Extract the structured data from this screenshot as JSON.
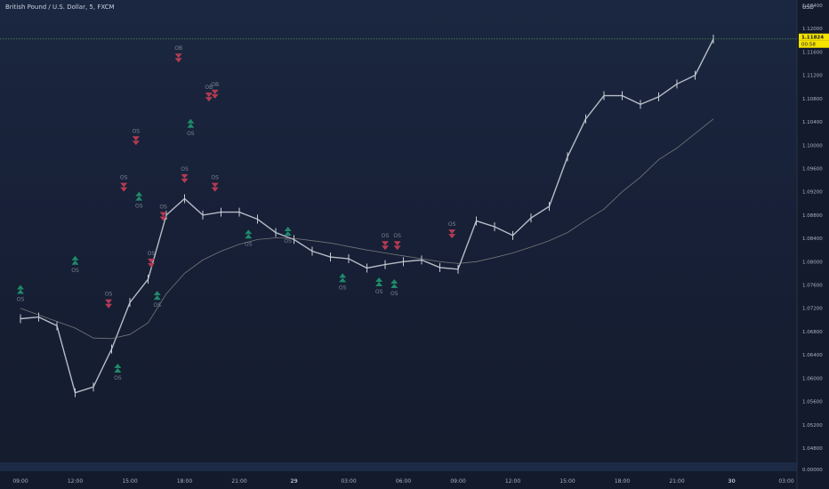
{
  "header": {
    "title": "British Pound / U.S. Dollar, 5, FXCM"
  },
  "price_axis": {
    "currency": "USD",
    "ticks": [
      "1.12400",
      "1.12000",
      "1.11600",
      "1.11200",
      "1.10800",
      "1.10400",
      "1.10000",
      "1.09600",
      "1.09200",
      "1.08800",
      "1.08400",
      "1.08000",
      "1.07600",
      "1.07200",
      "1.06800",
      "1.06400",
      "1.06000",
      "1.05600",
      "1.05200",
      "1.04800",
      "0.00000"
    ],
    "extra_ticks": [
      "1.11600"
    ],
    "current_price_label": "1.11824",
    "countdown_label": "00:58"
  },
  "time_axis": {
    "ticks": [
      "09:00",
      "12:00",
      "15:00",
      "18:00",
      "21:00",
      "29",
      "03:00",
      "06:00",
      "09:00",
      "12:00",
      "15:00",
      "18:00",
      "21:00",
      "30",
      "03:00"
    ]
  },
  "colors": {
    "background_top": "#1b2740",
    "background_bottom": "#141b2c",
    "candle": "#c8ccd6",
    "moving_average": "#8c8c8c",
    "bull_signal": "#1f8a6a",
    "bear_signal": "#b33b52",
    "signal_label": "#7b8494",
    "price_line": "#4f8f4f",
    "price_badge": "#f5e300"
  },
  "chart_data": {
    "type": "line",
    "title": "British Pound / U.S. Dollar, 5, FXCM",
    "xlabel": "",
    "ylabel": "USD",
    "x_labels": [
      "09:00",
      "12:00",
      "15:00",
      "18:00",
      "21:00",
      "29",
      "03:00",
      "06:00",
      "09:00",
      "12:00",
      "15:00",
      "18:00",
      "21:00",
      "30",
      "03:00"
    ],
    "ylim": [
      1.048,
      1.124
    ],
    "grid": false,
    "series": [
      {
        "x": [
          "09:00",
          "10:00",
          "11:00",
          "12:00",
          "13:00",
          "14:00",
          "15:00",
          "16:00",
          "17:00",
          "18:00",
          "19:00",
          "20:00",
          "21:00",
          "22:00",
          "23:00",
          "29",
          "01:00",
          "02:00",
          "03:00",
          "04:00",
          "05:00",
          "06:00",
          "07:00",
          "08:00",
          "09:00",
          "10:00",
          "11:00",
          "12:00",
          "13:00",
          "14:00",
          "15:00",
          "16:00",
          "17:00",
          "18:00",
          "19:00",
          "20:00",
          "21:00",
          "22:00",
          "23:00"
        ],
        "values": [
          1.0702,
          1.0705,
          1.069,
          1.0575,
          1.0585,
          1.065,
          1.073,
          1.077,
          1.088,
          1.0908,
          1.088,
          1.0885,
          1.0885,
          1.0873,
          1.085,
          1.0838,
          1.0818,
          1.0808,
          1.0805,
          1.0789,
          1.0795,
          1.08,
          1.0803,
          1.079,
          1.0787,
          1.087,
          1.086,
          1.0845,
          1.0875,
          1.0895,
          1.098,
          1.1045,
          1.1085,
          1.1085,
          1.107,
          1.1083,
          1.1105,
          1.112,
          1.1182
        ]
      },
      {
        "x": [
          "09:00",
          "12:00",
          "13:00",
          "14:00",
          "15:00",
          "16:00",
          "17:00",
          "18:00",
          "19:00",
          "20:00",
          "21:00",
          "22:00",
          "23:00",
          "29",
          "01:00",
          "02:00",
          "03:00",
          "04:00",
          "05:00",
          "06:00",
          "07:00",
          "08:00",
          "09:00",
          "10:00",
          "11:00",
          "12:00",
          "13:00",
          "14:00",
          "15:00",
          "16:00",
          "17:00",
          "18:00",
          "19:00",
          "20:00",
          "21:00",
          "22:00",
          "23:00"
        ],
        "values": [
          1.072,
          1.0686,
          1.0669,
          1.0668,
          1.0675,
          1.0695,
          1.0745,
          1.078,
          1.0803,
          1.0818,
          1.083,
          1.0838,
          1.0841,
          1.084,
          1.0836,
          1.0832,
          1.0826,
          1.082,
          1.0815,
          1.081,
          1.0805,
          1.08,
          1.0797,
          1.08,
          1.0807,
          1.0815,
          1.0825,
          1.0836,
          1.085,
          1.0871,
          1.089,
          1.092,
          1.0945,
          1.0975,
          1.0995,
          1.102,
          1.1045
        ]
      }
    ],
    "bull_signals": [
      {
        "x": "14:20",
        "y": 1.0625,
        "label": "OS"
      },
      {
        "x": "16:30",
        "y": 1.075,
        "label": "OS"
      },
      {
        "x": "21:30",
        "y": 1.0855,
        "label": "OS"
      },
      {
        "x": "23:40",
        "y": 1.086,
        "label": "OS"
      },
      {
        "x": "02:40",
        "y": 1.078,
        "label": "OS"
      },
      {
        "x": "04:40",
        "y": 1.0773,
        "label": "OS"
      },
      {
        "x": "05:30",
        "y": 1.077,
        "label": "OS"
      },
      {
        "x": "09:00",
        "y": 1.076,
        "label": "OS"
      },
      {
        "x": "12:00",
        "y": 1.081,
        "label": "OS"
      },
      {
        "x": "15:30",
        "y": 1.092,
        "label": "OS"
      },
      {
        "x": "18:20",
        "y": 1.1045,
        "label": "OS"
      }
    ],
    "bear_signals": [
      {
        "x": "13:50",
        "y": 1.072,
        "label": "OS"
      },
      {
        "x": "16:10",
        "y": 1.079,
        "label": "OS"
      },
      {
        "x": "16:50",
        "y": 1.087,
        "label": "OS"
      },
      {
        "x": "18:00",
        "y": 1.0935,
        "label": "OS"
      },
      {
        "x": "19:40",
        "y": 1.092,
        "label": "OS"
      },
      {
        "x": "05:00",
        "y": 1.082,
        "label": "OS"
      },
      {
        "x": "05:40",
        "y": 1.082,
        "label": "OS"
      },
      {
        "x": "08:40",
        "y": 1.084,
        "label": "OS"
      },
      {
        "x": "14:40",
        "y": 1.092,
        "label": "OS"
      },
      {
        "x": "15:20",
        "y": 1.1,
        "label": "OS"
      },
      {
        "x": "17:40",
        "y": 1.1142,
        "label": "OB"
      },
      {
        "x": "19:20",
        "y": 1.1075,
        "label": "OB"
      },
      {
        "x": "19:40",
        "y": 1.108,
        "label": "OB"
      }
    ]
  }
}
